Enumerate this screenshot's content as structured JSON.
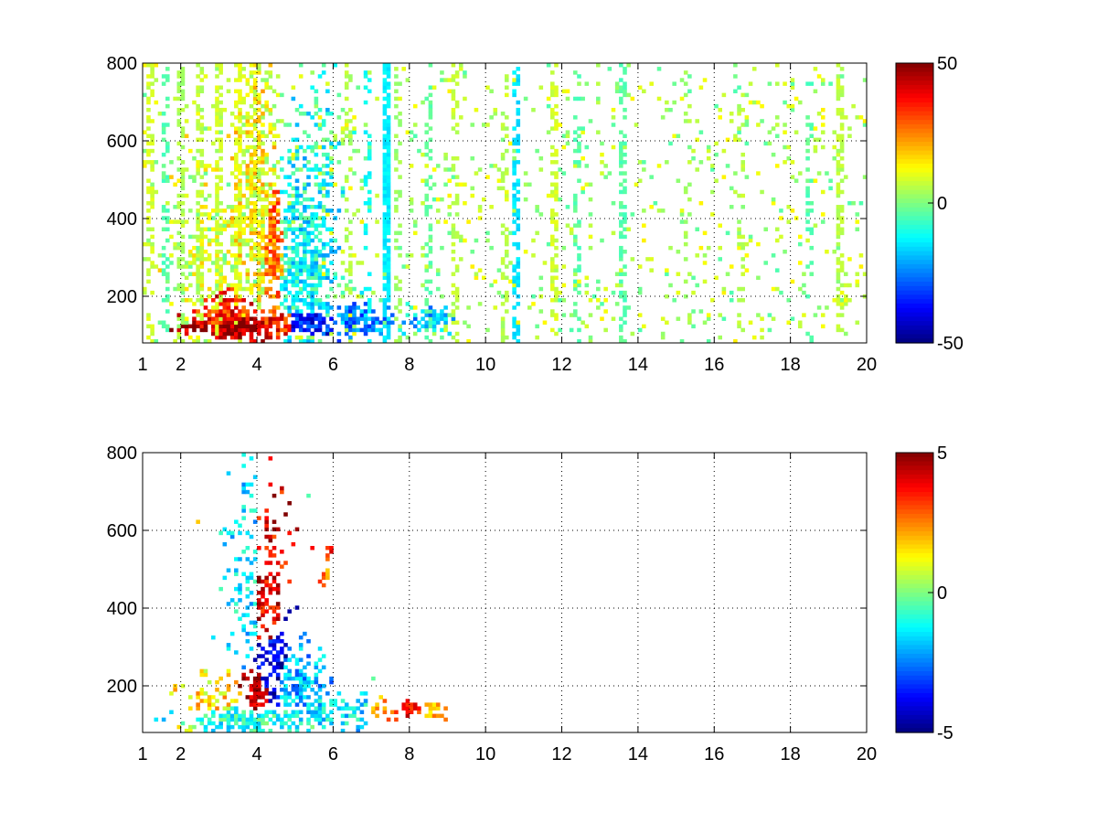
{
  "chart_data": [
    {
      "type": "heatmap",
      "title": "",
      "xlabel": "",
      "ylabel": "",
      "xlim": [
        1,
        20
      ],
      "ylim": [
        80,
        800
      ],
      "xticks": [
        1,
        2,
        4,
        6,
        8,
        10,
        12,
        14,
        16,
        18,
        20
      ],
      "yticks": [
        200,
        400,
        600,
        800
      ],
      "grid": true,
      "colormap": "jet",
      "colorbar": {
        "min": -50,
        "max": 50,
        "ticks": [
          50,
          0,
          -50
        ]
      },
      "clusters": [
        {
          "x": 3.6,
          "y": 125,
          "sx": 0.9,
          "sy": 25,
          "value": 45,
          "density": 0.98
        },
        {
          "x": 3.2,
          "y": 150,
          "sx": 0.6,
          "sy": 40,
          "value": 35,
          "density": 0.9
        },
        {
          "x": 4.5,
          "y": 130,
          "sx": 0.5,
          "sy": 25,
          "value": 35,
          "density": 0.95
        },
        {
          "x": 5.3,
          "y": 130,
          "sx": 0.45,
          "sy": 25,
          "value": -35,
          "density": 0.95
        },
        {
          "x": 4.4,
          "y": 330,
          "sx": 0.25,
          "sy": 110,
          "value": 25,
          "density": 0.85
        },
        {
          "x": 4.0,
          "y": 450,
          "sx": 0.35,
          "sy": 230,
          "value": 12,
          "density": 0.8
        },
        {
          "x": 5.2,
          "y": 300,
          "sx": 0.5,
          "sy": 170,
          "value": -12,
          "density": 0.75
        },
        {
          "x": 5.7,
          "y": 450,
          "sx": 0.2,
          "sy": 180,
          "value": -10,
          "density": 0.5
        },
        {
          "x": 6.7,
          "y": 135,
          "sx": 0.5,
          "sy": 25,
          "value": -25,
          "density": 0.8
        },
        {
          "x": 8.4,
          "y": 140,
          "sx": 0.4,
          "sy": 20,
          "value": -18,
          "density": 0.75
        },
        {
          "x": 2.7,
          "y": 250,
          "sx": 0.5,
          "sy": 200,
          "value": 8,
          "density": 0.35
        }
      ],
      "streaks": [
        {
          "x": 1.2,
          "value": 8,
          "density": 0.35
        },
        {
          "x": 1.6,
          "value": -4,
          "density": 0.35
        },
        {
          "x": 2.0,
          "value": 4,
          "density": 0.45
        },
        {
          "x": 2.5,
          "value": 6,
          "density": 0.45
        },
        {
          "x": 3.0,
          "value": 8,
          "density": 0.55
        },
        {
          "x": 3.5,
          "value": 10,
          "density": 0.65
        },
        {
          "x": 6.4,
          "value": 5,
          "density": 0.3
        },
        {
          "x": 6.9,
          "value": -12,
          "density": 0.2
        },
        {
          "x": 7.4,
          "value": -14,
          "density": 0.8
        },
        {
          "x": 7.7,
          "value": 3,
          "density": 0.3
        },
        {
          "x": 8.5,
          "value": -3,
          "density": 0.3
        },
        {
          "x": 9.2,
          "value": 6,
          "density": 0.35
        },
        {
          "x": 10.5,
          "value": 5,
          "density": 0.25
        },
        {
          "x": 10.8,
          "value": -15,
          "density": 0.5
        },
        {
          "x": 11.8,
          "value": 8,
          "density": 0.45
        },
        {
          "x": 12.4,
          "value": -4,
          "density": 0.2
        },
        {
          "x": 13.6,
          "value": -4,
          "density": 0.5
        },
        {
          "x": 15.3,
          "value": 4,
          "density": 0.15
        },
        {
          "x": 16.7,
          "value": 6,
          "density": 0.25
        },
        {
          "x": 18.5,
          "value": -4,
          "density": 0.2
        },
        {
          "x": 19.3,
          "value": 6,
          "density": 0.5
        }
      ],
      "scatter": {
        "xmax": 20,
        "density": 0.07,
        "min": -5,
        "max": 14
      }
    },
    {
      "type": "heatmap",
      "title": "",
      "xlabel": "",
      "ylabel": "",
      "xlim": [
        1,
        20
      ],
      "ylim": [
        80,
        800
      ],
      "xticks": [
        1,
        2,
        4,
        6,
        8,
        10,
        12,
        14,
        16,
        18,
        20
      ],
      "yticks": [
        200,
        400,
        600,
        800
      ],
      "grid": true,
      "colormap": "jet",
      "colorbar": {
        "min": -5,
        "max": 5,
        "ticks": [
          5,
          0,
          -5
        ]
      },
      "clusters": [
        {
          "x": 3.8,
          "y": 115,
          "sx": 1.0,
          "sy": 25,
          "value": -1,
          "density": 0.9
        },
        {
          "x": 3.0,
          "y": 160,
          "sx": 0.5,
          "sy": 40,
          "value": 1.5,
          "density": 0.55
        },
        {
          "x": 4.0,
          "y": 175,
          "sx": 0.3,
          "sy": 45,
          "value": 4.5,
          "density": 0.75
        },
        {
          "x": 4.4,
          "y": 230,
          "sx": 0.3,
          "sy": 90,
          "value": -4,
          "density": 0.6
        },
        {
          "x": 4.3,
          "y": 420,
          "sx": 0.25,
          "sy": 200,
          "value": 4,
          "density": 0.4
        },
        {
          "x": 3.7,
          "y": 450,
          "sx": 0.3,
          "sy": 200,
          "value": -1.5,
          "density": 0.3
        },
        {
          "x": 5.0,
          "y": 200,
          "sx": 0.45,
          "sy": 60,
          "value": -2,
          "density": 0.7
        },
        {
          "x": 5.6,
          "y": 140,
          "sx": 0.3,
          "sy": 25,
          "value": -1.5,
          "density": 0.85
        },
        {
          "x": 5.8,
          "y": 545,
          "sx": 0.12,
          "sy": 12,
          "value": 3.5,
          "density": 0.7
        },
        {
          "x": 5.8,
          "y": 480,
          "sx": 0.12,
          "sy": 12,
          "value": 2.5,
          "density": 0.6
        },
        {
          "x": 6.6,
          "y": 135,
          "sx": 0.4,
          "sy": 25,
          "value": -1.5,
          "density": 0.7
        },
        {
          "x": 7.0,
          "y": 140,
          "sx": 0.3,
          "sy": 20,
          "value": 2.5,
          "density": 0.6
        },
        {
          "x": 8.0,
          "y": 150,
          "sx": 0.25,
          "sy": 15,
          "value": 3.5,
          "density": 0.75
        },
        {
          "x": 8.6,
          "y": 140,
          "sx": 0.3,
          "sy": 15,
          "value": 2,
          "density": 0.6
        },
        {
          "x": 2.3,
          "y": 100,
          "sx": 0.35,
          "sy": 10,
          "value": 0.5,
          "density": 0.5
        }
      ],
      "streaks": [],
      "scatter": {
        "xmax": 10,
        "density": 0.0015,
        "min": -2,
        "max": 2
      }
    }
  ]
}
